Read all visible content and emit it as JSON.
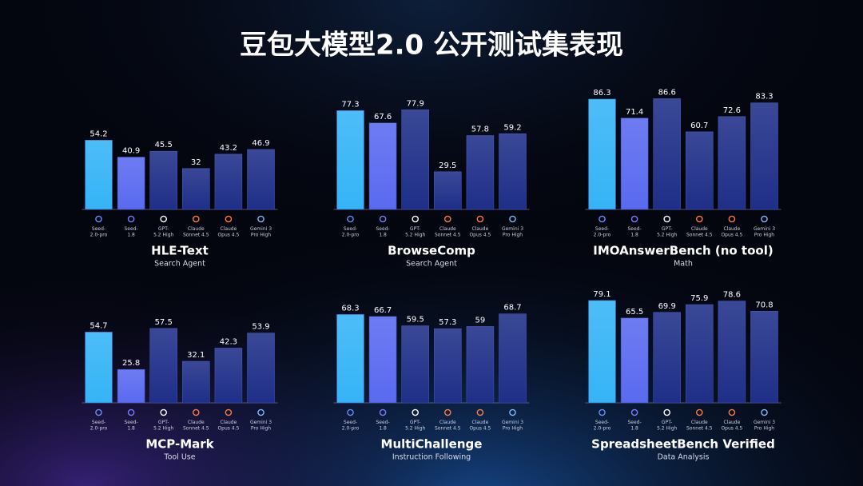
{
  "title": "豆包大模型2.0 公开测试集表现",
  "chart_data": [
    {
      "type": "bar",
      "title": "HLE-Text",
      "subtitle": "Search Agent",
      "categories": [
        [
          "Seed-",
          "2.0-pro"
        ],
        [
          "Seed-",
          "1.8"
        ],
        [
          "GPT-",
          "5.2 High"
        ],
        [
          "Claude",
          "Sonnet 4.5"
        ],
        [
          "Claude",
          "Opus 4.5"
        ],
        [
          "Gemini 3",
          "Pro High"
        ]
      ],
      "values": [
        54.2,
        40.9,
        45.5,
        32,
        43.2,
        46.9
      ],
      "colors": [
        "#35b4f6",
        "#5a6af0",
        "#1f2f88",
        "#1f2f88",
        "#1f2f88",
        "#1f2f88"
      ]
    },
    {
      "type": "bar",
      "title": "BrowseComp",
      "subtitle": "Search Agent",
      "categories": [
        [
          "Seed-",
          "2.0-pro"
        ],
        [
          "Seed-",
          "1.8"
        ],
        [
          "GPT-",
          "5.2 High"
        ],
        [
          "Claude",
          "Sonnet 4.5"
        ],
        [
          "Claude",
          "Opus 4.5"
        ],
        [
          "Gemini 3",
          "Pro High"
        ]
      ],
      "values": [
        77.3,
        67.6,
        77.9,
        29.5,
        57.8,
        59.2
      ],
      "colors": [
        "#35b4f6",
        "#5a6af0",
        "#1f2f88",
        "#1f2f88",
        "#1f2f88",
        "#1f2f88"
      ]
    },
    {
      "type": "bar",
      "title": "IMOAnswerBench (no tool)",
      "subtitle": "Math",
      "categories": [
        [
          "Seed-",
          "2.0-pro"
        ],
        [
          "Seed-",
          "1.8"
        ],
        [
          "GPT-",
          "5.2 High"
        ],
        [
          "Claude",
          "Sonnet 4.5"
        ],
        [
          "Claude",
          "Opus 4.5"
        ],
        [
          "Gemini 3",
          "Pro High"
        ]
      ],
      "values": [
        86.3,
        71.4,
        86.6,
        60.7,
        72.6,
        83.3
      ],
      "colors": [
        "#35b4f6",
        "#5a6af0",
        "#1f2f88",
        "#1f2f88",
        "#1f2f88",
        "#1f2f88"
      ]
    },
    {
      "type": "bar",
      "title": "MCP-Mark",
      "subtitle": "Tool Use",
      "categories": [
        [
          "Seed-",
          "2.0-pro"
        ],
        [
          "Seed-",
          "1.8"
        ],
        [
          "GPT-",
          "5.2 High"
        ],
        [
          "Claude",
          "Sonnet 4.5"
        ],
        [
          "Claude",
          "Opus 4.5"
        ],
        [
          "Gemini 3",
          "Pro High"
        ]
      ],
      "values": [
        54.7,
        25.8,
        57.5,
        32.1,
        42.3,
        53.9
      ],
      "colors": [
        "#35b4f6",
        "#5a6af0",
        "#1f2f88",
        "#1f2f88",
        "#1f2f88",
        "#1f2f88"
      ]
    },
    {
      "type": "bar",
      "title": "MultiChallenge",
      "subtitle": "Instruction Following",
      "categories": [
        [
          "Seed-",
          "2.0-pro"
        ],
        [
          "Seed-",
          "1.8"
        ],
        [
          "GPT-",
          "5.2 High"
        ],
        [
          "Claude",
          "Sonnet 4.5"
        ],
        [
          "Claude",
          "Opus 4.5"
        ],
        [
          "Gemini 3",
          "Pro High"
        ]
      ],
      "values": [
        68.3,
        66.7,
        59.5,
        57.3,
        59,
        68.7
      ],
      "colors": [
        "#35b4f6",
        "#5a6af0",
        "#1f2f88",
        "#1f2f88",
        "#1f2f88",
        "#1f2f88"
      ]
    },
    {
      "type": "bar",
      "title": "SpreadsheetBench Verified",
      "subtitle": "Data Analysis",
      "categories": [
        [
          "Seed-",
          "2.0-pro"
        ],
        [
          "Seed-",
          "1.8"
        ],
        [
          "GPT-",
          "5.2 High"
        ],
        [
          "Claude",
          "Sonnet 4.5"
        ],
        [
          "Claude",
          "Opus 4.5"
        ],
        [
          "Gemini 3",
          "Pro High"
        ]
      ],
      "values": [
        79.1,
        65.5,
        69.9,
        75.9,
        78.6,
        70.8
      ],
      "colors": [
        "#35b4f6",
        "#5a6af0",
        "#1f2f88",
        "#1f2f88",
        "#1f2f88",
        "#1f2f88"
      ]
    }
  ]
}
